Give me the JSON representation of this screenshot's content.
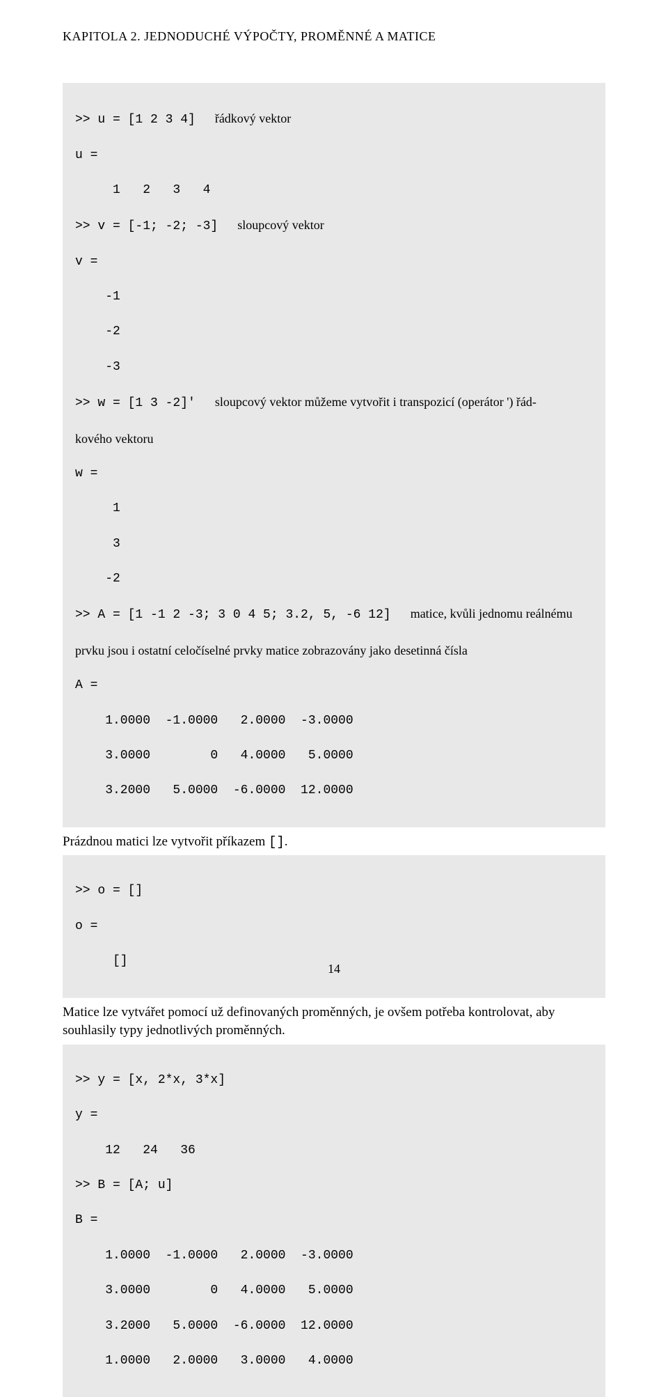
{
  "header": "KAPITOLA 2. JEDNODUCHÉ VÝPOČTY, PROMĚNNÉ A MATICE",
  "block1": {
    "l1_code": ">> u = [1 2 3 4]",
    "l1_comment": "řádkový vektor",
    "l2": "u =",
    "l3": "     1   2   3   4",
    "l4_code": ">> v = [-1; -2; -3]",
    "l4_comment": "sloupcový vektor",
    "l5": "v =",
    "l6": "    -1",
    "l7": "    -2",
    "l8": "    -3",
    "l9_code": ">> w = [1 3 -2]'",
    "l9_comment": "sloupcový vektor můžeme vytvořit i transpozicí (operátor ') řád-",
    "l10": "kového vektoru",
    "l11": "w =",
    "l12": "     1",
    "l13": "     3",
    "l14": "    -2",
    "l15_code": ">> A = [1 -1 2 -3; 3 0 4 5; 3.2, 5, -6 12]",
    "l15_comment": "matice, kvůli jednomu reálnému",
    "l16": "prvku jsou i ostatní celočíselné prvky matice zobrazovány jako desetinná čísla",
    "l17": "A =",
    "l18": "    1.0000  -1.0000   2.0000  -3.0000",
    "l19": "    3.0000        0   4.0000   5.0000",
    "l20": "    3.2000   5.0000  -6.0000  12.0000"
  },
  "para1_a": "Prázdnou matici lze vytvořit příkazem ",
  "para1_b": "[]",
  "para1_c": ".",
  "block2": {
    "l1": ">> o = []",
    "l2": "o =",
    "l3": "     []"
  },
  "para2": "Matice lze vytvářet pomocí už definovaných proměnných, je ovšem potřeba kontrolovat, aby souhlasily typy jednotlivých proměnných.",
  "block3": {
    "l1": ">> y = [x, 2*x, 3*x]",
    "l2": "y =",
    "l3": "    12   24   36",
    "l4": ">> B = [A; u]",
    "l5": "B =",
    "l6": "    1.0000  -1.0000   2.0000  -3.0000",
    "l7": "    3.0000        0   4.0000   5.0000",
    "l8": "    3.2000   5.0000  -6.0000  12.0000",
    "l9": "    1.0000   2.0000   3.0000   4.0000"
  },
  "page_number": "14",
  "colors": {
    "background": "#ffffff",
    "code_bg": "#e8e8e8",
    "text": "#000000"
  },
  "fonts": {
    "body": "Times New Roman",
    "mono": "Courier New",
    "header_size": 18,
    "body_size": 19,
    "code_size": 18
  }
}
